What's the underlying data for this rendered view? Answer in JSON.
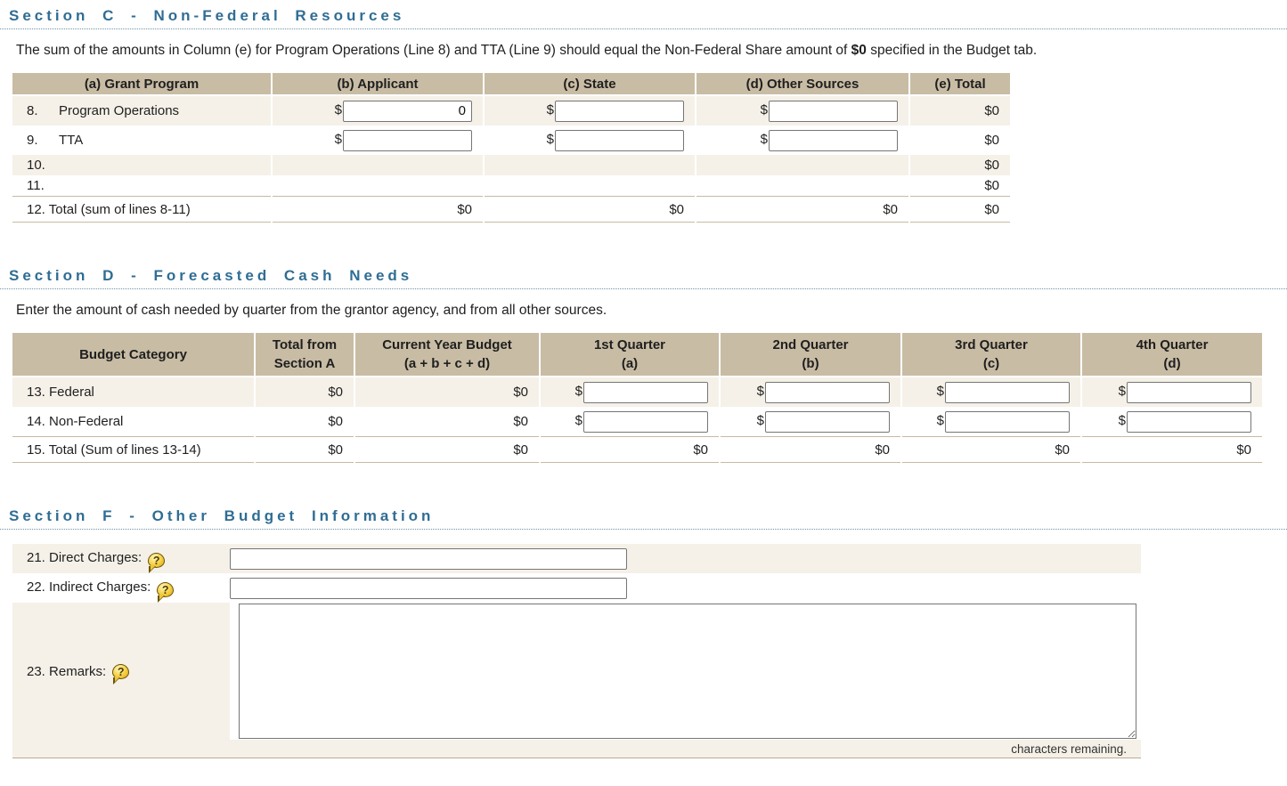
{
  "currency": "$",
  "help_icon": "?",
  "section_c": {
    "title": "Section C - Non-Federal Resources",
    "instruction": {
      "before": "The sum of the amounts in Column (e) for Program Operations (Line 8) and TTA (Line 9) should equal the Non-Federal Share amount of ",
      "amount": "$0",
      "after": " specified in the Budget tab."
    },
    "table": {
      "headers": [
        "(a) Grant Program",
        "(b) Applicant",
        "(c) State",
        "(d) Other Sources",
        "(e) Total"
      ],
      "rows": [
        {
          "num": "8.",
          "label": "Program Operations",
          "applicant": "0",
          "state": "",
          "other": "",
          "total": "$0"
        },
        {
          "num": "9.",
          "label": "TTA",
          "applicant": "",
          "state": "",
          "other": "",
          "total": "$0"
        },
        {
          "num": "10.",
          "label": "",
          "total": "$0"
        },
        {
          "num": "11.",
          "label": "",
          "total": "$0"
        }
      ],
      "total_row": {
        "label": "12. Total (sum of lines 8-11)",
        "applicant": "$0",
        "state": "$0",
        "other": "$0",
        "total": "$0"
      }
    }
  },
  "section_d": {
    "title": "Section D - Forecasted Cash Needs",
    "instruction": "Enter the amount of cash needed by quarter from the grantor agency, and from all other sources.",
    "table": {
      "headers": [
        {
          "line1": "Budget Category",
          "line2": ""
        },
        {
          "line1": "Total from",
          "line2": "Section A"
        },
        {
          "line1": "Current Year Budget",
          "line2": "(a + b + c + d)"
        },
        {
          "line1": "1st Quarter",
          "line2": "(a)"
        },
        {
          "line1": "2nd Quarter",
          "line2": "(b)"
        },
        {
          "line1": "3rd Quarter",
          "line2": "(c)"
        },
        {
          "line1": "4th Quarter",
          "line2": "(d)"
        }
      ],
      "rows": [
        {
          "label": "13. Federal",
          "total_section_a": "$0",
          "current_year": "$0",
          "q1": "",
          "q2": "",
          "q3": "",
          "q4": ""
        },
        {
          "label": "14. Non-Federal",
          "total_section_a": "$0",
          "current_year": "$0",
          "q1": "",
          "q2": "",
          "q3": "",
          "q4": ""
        }
      ],
      "total_row": {
        "label": "15. Total (Sum of lines 13-14)",
        "total_section_a": "$0",
        "current_year": "$0",
        "q1": "$0",
        "q2": "$0",
        "q3": "$0",
        "q4": "$0"
      }
    }
  },
  "section_f": {
    "title": "Section F - Other Budget Information",
    "direct_charges_label": "21. Direct Charges:",
    "direct_charges_value": "",
    "indirect_charges_label": "22. Indirect Charges:",
    "indirect_charges_value": "",
    "remarks_label": "23. Remarks:",
    "remarks_value": "",
    "characters_remaining": "characters remaining."
  }
}
